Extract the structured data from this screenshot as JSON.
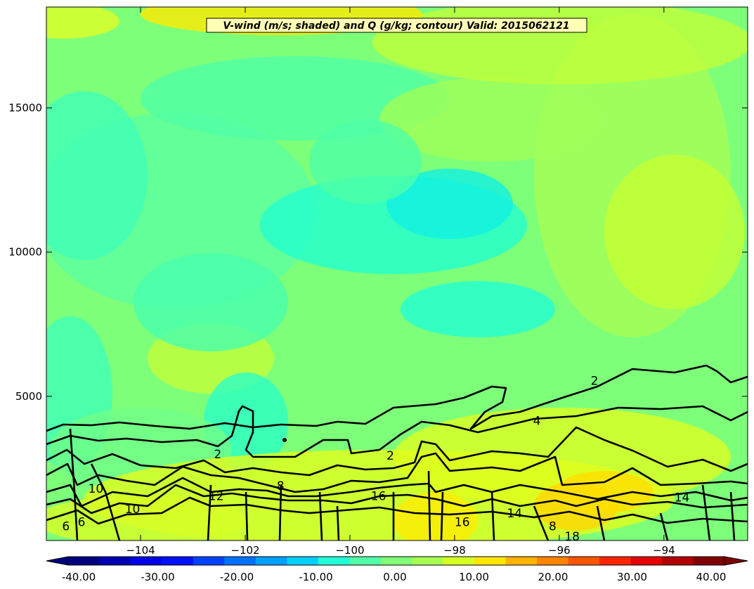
{
  "chart_data": {
    "type": "heatmap",
    "subtype": "filled contour cross-section with line contours",
    "title": "V-wind (m/s; shaded) and Q (g/kg; contour) Valid: 2015062121",
    "x_ticks": [
      -104,
      -102,
      -100,
      -98,
      -96,
      -94
    ],
    "x_tick_labels": [
      "−104",
      "−102",
      "−100",
      "−98",
      "−96",
      "−94"
    ],
    "y_ticks": [
      5000,
      10000,
      15000
    ],
    "y_tick_labels": [
      "5000",
      "10000",
      "15000"
    ],
    "xlim": [
      -105.8,
      -92.4
    ],
    "ylim": [
      0,
      18500
    ],
    "colorbar": {
      "min": -40,
      "max": 40,
      "ticks": [
        -40,
        -30,
        -20,
        -10,
        0,
        10,
        20,
        30,
        40
      ],
      "tick_labels": [
        "-40.00",
        "-30.00",
        "-20.00",
        "-10.00",
        "0.00",
        "10.00",
        "20.00",
        "30.00",
        "40.00"
      ],
      "colors": [
        "#00007f",
        "#0000b2",
        "#0000e6",
        "#0010ff",
        "#0040ff",
        "#0070ff",
        "#00a0ff",
        "#00d0ff",
        "#20ffd6",
        "#50ffa6",
        "#80ff76",
        "#a6ff50",
        "#d6ff20",
        "#ffe600",
        "#ffb400",
        "#ff8400",
        "#ff5400",
        "#ff2400",
        "#e60000",
        "#b20000",
        "#7f0000"
      ]
    },
    "q_contour_levels": [
      2,
      4,
      6,
      8,
      10,
      12,
      14,
      16,
      18
    ],
    "q_contour_labels": [
      {
        "text": "2",
        "x": -95.4,
        "y": 5550
      },
      {
        "text": "4",
        "x": -96.5,
        "y": 4150
      },
      {
        "text": "2",
        "x": -99.3,
        "y": 2950
      },
      {
        "text": "2",
        "x": -102.6,
        "y": 3000
      },
      {
        "text": "8",
        "x": -101.4,
        "y": 1900
      },
      {
        "text": "10",
        "x": -105.0,
        "y": 1800
      },
      {
        "text": "10",
        "x": -104.3,
        "y": 1100
      },
      {
        "text": "12",
        "x": -102.7,
        "y": 1550
      },
      {
        "text": "16",
        "x": -99.6,
        "y": 1550
      },
      {
        "text": "6",
        "x": -105.2,
        "y": 650
      },
      {
        "text": "6",
        "x": -105.5,
        "y": 500
      },
      {
        "text": "16",
        "x": -98.0,
        "y": 650
      },
      {
        "text": "14",
        "x": -97.0,
        "y": 950
      },
      {
        "text": "8",
        "x": -96.2,
        "y": 500
      },
      {
        "text": "18",
        "x": -95.9,
        "y": 150
      },
      {
        "text": "14",
        "x": -93.8,
        "y": 1500
      }
    ]
  }
}
